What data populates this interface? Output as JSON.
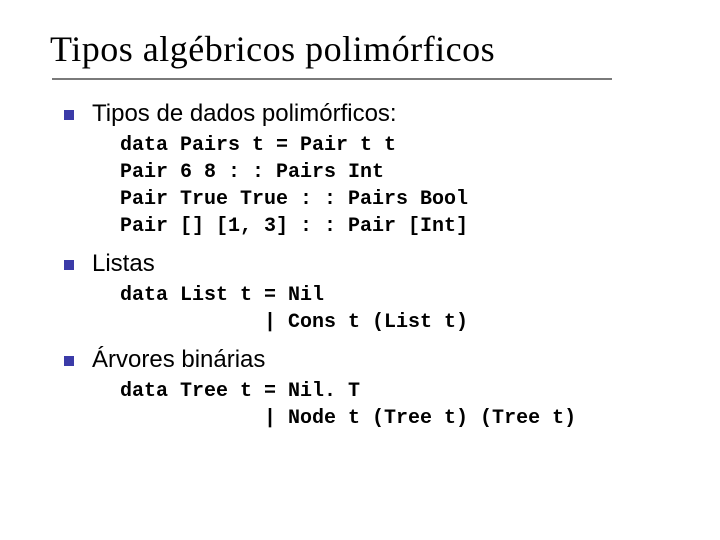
{
  "slide": {
    "title": "Tipos algébricos polimórficos",
    "title_color": "#000000",
    "title_fontsize": 36,
    "underline_color": "#7a7a7a",
    "underline_width": 560,
    "bullet_color": "#3b3ba8",
    "bullet_size": 10,
    "body_fontsize": 24,
    "code_fontsize": 20,
    "background_color": "#ffffff",
    "sections": [
      {
        "heading": "Tipos de dados polimórficos:",
        "code": "data Pairs t = Pair t t\nPair 6 8 : : Pairs Int\nPair True True : : Pairs Bool\nPair [] [1, 3] : : Pair [Int]"
      },
      {
        "heading": "Listas",
        "code": "data List t = Nil\n            | Cons t (List t)"
      },
      {
        "heading": "Árvores binárias",
        "code": "data Tree t = Nil. T\n            | Node t (Tree t) (Tree t)"
      }
    ]
  }
}
